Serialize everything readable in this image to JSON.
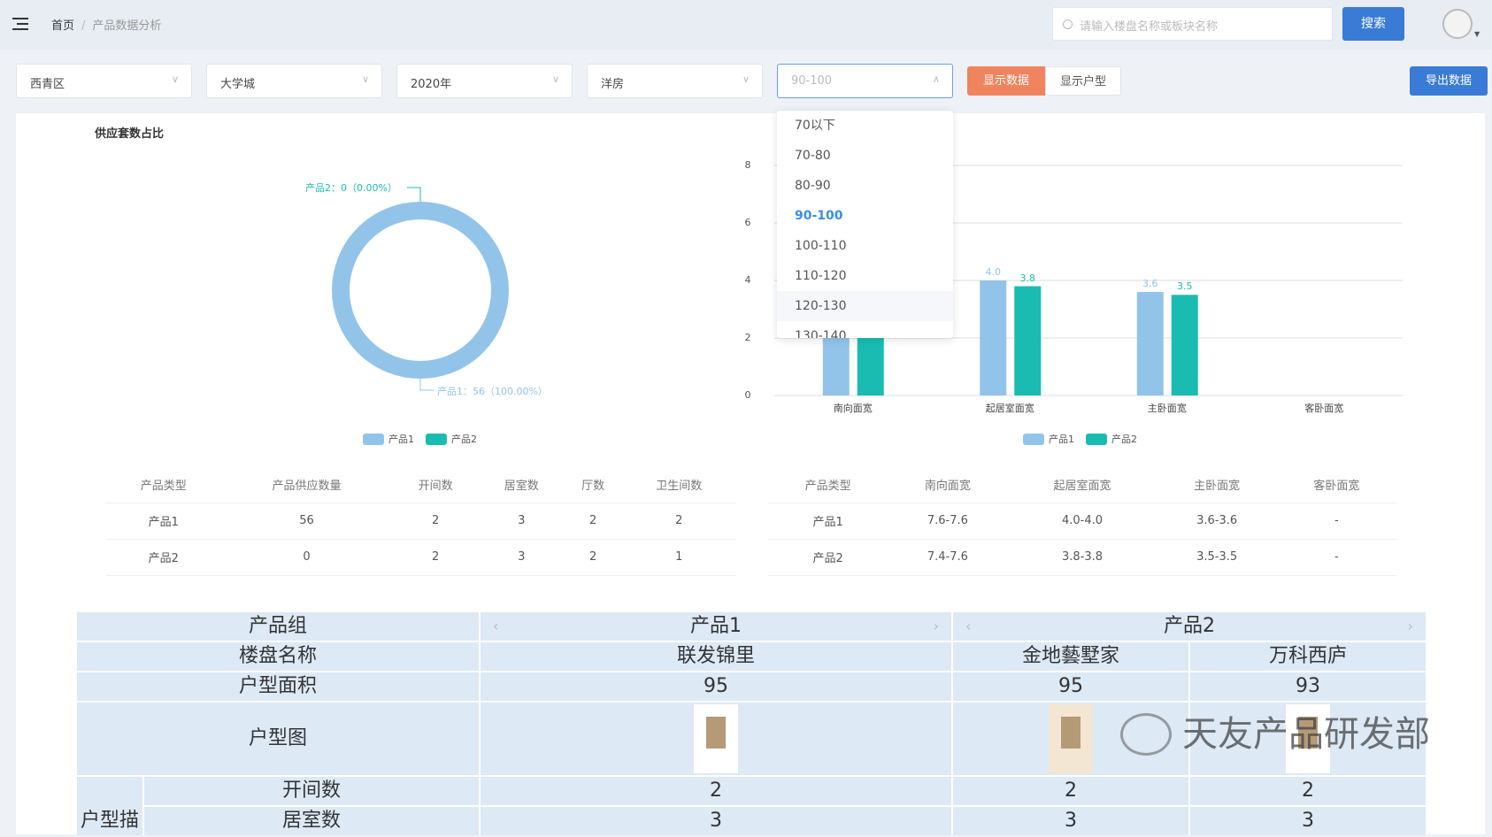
{
  "header": {
    "breadcrumb": [
      "首页",
      "产品数据分析"
    ],
    "search_placeholder": "请输入楼盘名称或板块名称",
    "search_button": "搜索"
  },
  "filters": {
    "district": "西青区",
    "area": "大学城",
    "year": "2020年",
    "type": "洋房",
    "size_range": "90-100",
    "show_data": "显示数据",
    "show_layout": "显示户型",
    "export": "导出数据"
  },
  "dropdown": {
    "options": [
      "70以下",
      "70-80",
      "80-90",
      "90-100",
      "100-110",
      "110-120",
      "120-130",
      "130-140"
    ],
    "selected": "90-100",
    "hovered": "120-130"
  },
  "colors": {
    "product1": "#92c4ea",
    "product2": "#1abcb1",
    "primary": "#3a7bd5",
    "orange": "#f0845f"
  },
  "chart_data": [
    {
      "type": "pie",
      "title": "供应套数占比",
      "donut": true,
      "slices": [
        {
          "name": "产品1",
          "value": 56,
          "label": "产品1：56（100.00%）"
        },
        {
          "name": "产品2",
          "value": 0,
          "label": "产品2：0（0.00%）"
        }
      ],
      "legend": [
        "产品1",
        "产品2"
      ],
      "legend_position": "bottom"
    },
    {
      "type": "bar",
      "categories": [
        "南向面宽",
        "起居室面宽",
        "主卧面宽",
        "客卧面宽"
      ],
      "series": [
        {
          "name": "产品1",
          "values": [
            7.6,
            4.0,
            3.6,
            null
          ]
        },
        {
          "name": "产品2",
          "values": [
            7.4,
            3.8,
            3.5,
            null
          ]
        }
      ],
      "data_labels": [
        [
          "",
          "4.0",
          "3.6",
          ""
        ],
        [
          "",
          "3.8",
          "3.5",
          ""
        ]
      ],
      "yticks": [
        "0",
        "2",
        "4",
        "6",
        "8"
      ],
      "ylim": [
        0,
        8
      ],
      "grid": true,
      "legend_position": "bottom"
    }
  ],
  "table_left": {
    "headers": [
      "产品类型",
      "产品供应数量",
      "开间数",
      "居室数",
      "厅数",
      "卫生间数"
    ],
    "rows": [
      [
        "产品1",
        "56",
        "2",
        "3",
        "2",
        "2"
      ],
      [
        "产品2",
        "0",
        "2",
        "3",
        "2",
        "1"
      ]
    ]
  },
  "table_right": {
    "headers": [
      "产品类型",
      "南向面宽",
      "起居室面宽",
      "主卧面宽",
      "客卧面宽"
    ],
    "rows": [
      [
        "产品1",
        "7.6-7.6",
        "4.0-4.0",
        "3.6-3.6",
        "-"
      ],
      [
        "产品2",
        "7.4-7.6",
        "3.8-3.8",
        "3.5-3.5",
        "-"
      ]
    ]
  },
  "compare": {
    "group_label": "产品组",
    "groups": [
      "产品1",
      "产品2"
    ],
    "name_label": "楼盘名称",
    "names": [
      "联发锦里",
      "金地藝墅家",
      "万科西庐"
    ],
    "area_label": "户型面积",
    "areas": [
      "95",
      "95",
      "93"
    ],
    "plan_label": "户型图",
    "desc_label": "户型描",
    "rooms_label": "开间数",
    "rooms": [
      "2",
      "2",
      "2"
    ],
    "bedrooms_label": "居室数",
    "bedrooms": [
      "3",
      "3",
      "3"
    ]
  },
  "watermark": "天友产品研发部"
}
